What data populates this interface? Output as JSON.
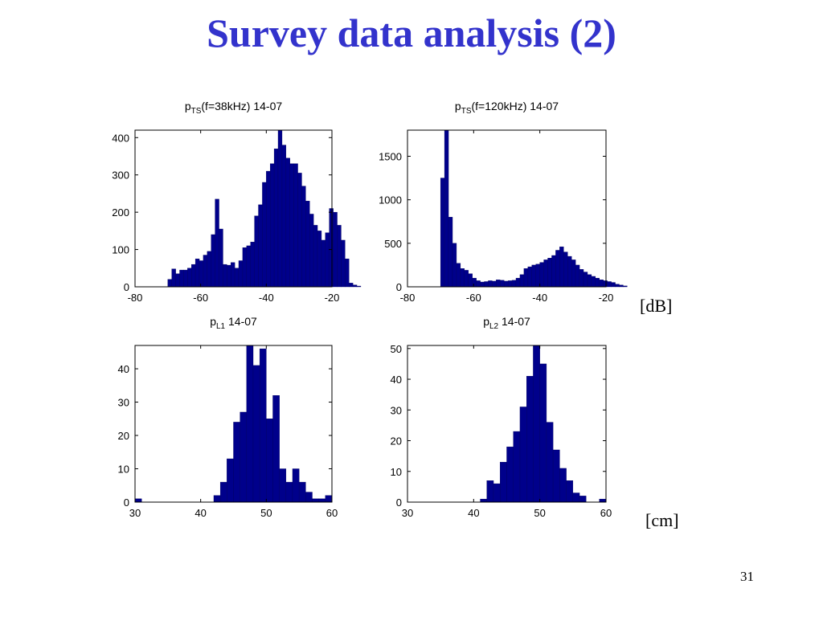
{
  "slide": {
    "title": "Survey data analysis (2)",
    "unit_db": "[dB]",
    "unit_cm": "[cm]",
    "page_number": "31"
  },
  "colors": {
    "bar": "#00008b",
    "title": "#3333cc"
  },
  "chart_data": [
    {
      "id": "ts38",
      "type": "bar",
      "title_main": "p",
      "title_sub": "TS",
      "title_rest": "(f=38kHz) 14-07",
      "xlim": [
        -80,
        -20
      ],
      "ylim": [
        0,
        420
      ],
      "xticks": [
        -80,
        -60,
        -40,
        -20
      ],
      "yticks": [
        0,
        100,
        200,
        300,
        400
      ],
      "bin_start": -70,
      "bin_width": 1.2,
      "values": [
        20,
        48,
        35,
        45,
        45,
        50,
        60,
        75,
        70,
        85,
        95,
        140,
        235,
        155,
        60,
        58,
        65,
        50,
        70,
        105,
        110,
        120,
        190,
        220,
        280,
        310,
        330,
        370,
        420,
        380,
        345,
        330,
        330,
        305,
        270,
        230,
        195,
        165,
        150,
        125,
        145,
        210,
        200,
        165,
        125,
        75,
        10,
        5,
        2,
        0
      ]
    },
    {
      "id": "ts120",
      "type": "bar",
      "title_main": "p",
      "title_sub": "TS",
      "title_rest": "(f=120kHz) 14-07",
      "xlim": [
        -80,
        -20
      ],
      "ylim": [
        0,
        1800
      ],
      "xticks": [
        -80,
        -60,
        -40,
        -20
      ],
      "yticks": [
        0,
        500,
        1000,
        1500
      ],
      "bin_start": -70,
      "bin_width": 1.2,
      "values": [
        1250,
        1800,
        800,
        500,
        270,
        210,
        190,
        150,
        100,
        70,
        55,
        60,
        70,
        65,
        80,
        75,
        65,
        70,
        75,
        100,
        140,
        210,
        230,
        250,
        260,
        280,
        310,
        330,
        360,
        420,
        460,
        400,
        350,
        310,
        250,
        200,
        170,
        140,
        120,
        100,
        80,
        70,
        60,
        50,
        30,
        20,
        10
      ]
    },
    {
      "id": "l1",
      "type": "bar",
      "title_main": "p",
      "title_sub": "L1",
      "title_rest": "14-07",
      "xlim": [
        30,
        60
      ],
      "ylim": [
        0,
        47
      ],
      "xticks": [
        30,
        40,
        50,
        60
      ],
      "yticks": [
        0,
        10,
        20,
        30,
        40
      ],
      "bin_start": 30,
      "bin_width": 1,
      "values": [
        1,
        0,
        0,
        0,
        0,
        0,
        0,
        0,
        0,
        0,
        0,
        0,
        2,
        6,
        13,
        24,
        27,
        47,
        41,
        46,
        25,
        32,
        10,
        6,
        10,
        6,
        3,
        1,
        1,
        2
      ]
    },
    {
      "id": "l2",
      "type": "bar",
      "title_main": "p",
      "title_sub": "L2",
      "title_rest": "14-07",
      "xlim": [
        30,
        60
      ],
      "ylim": [
        0,
        51
      ],
      "xticks": [
        30,
        40,
        50,
        60
      ],
      "yticks": [
        0,
        10,
        20,
        30,
        40,
        50
      ],
      "bin_start": 30,
      "bin_width": 1,
      "values": [
        0,
        0,
        0,
        0,
        0,
        0,
        0,
        0,
        0,
        0,
        0,
        1,
        7,
        6,
        13,
        18,
        23,
        31,
        41,
        51,
        45,
        26,
        17,
        11,
        7,
        3,
        2,
        0,
        0,
        1
      ]
    }
  ]
}
